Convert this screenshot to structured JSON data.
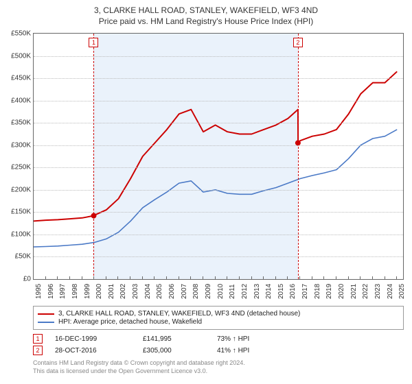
{
  "title": {
    "line1": "3, CLARKE HALL ROAD, STANLEY, WAKEFIELD, WF3 4ND",
    "line2": "Price paid vs. HM Land Registry's House Price Index (HPI)"
  },
  "chart": {
    "type": "line",
    "background_color": "#ffffff",
    "shade_color": "#eaf2fb",
    "grid_color": "#bbbbbb",
    "axis_color": "#666666",
    "label_fontsize": 10,
    "x": {
      "min": 1995,
      "max": 2025.5,
      "ticks": [
        1995,
        1996,
        1997,
        1998,
        1999,
        2000,
        2001,
        2002,
        2003,
        2004,
        2005,
        2006,
        2007,
        2008,
        2009,
        2010,
        2011,
        2012,
        2013,
        2014,
        2015,
        2016,
        2017,
        2018,
        2019,
        2020,
        2021,
        2022,
        2023,
        2024,
        2025
      ]
    },
    "y": {
      "min": 0,
      "max": 550000,
      "step": 50000,
      "prefix": "£",
      "suffix": "K",
      "ticks": [
        0,
        50000,
        100000,
        150000,
        200000,
        250000,
        300000,
        350000,
        400000,
        450000,
        500000,
        550000
      ]
    },
    "shade": {
      "from": 1999.96,
      "to": 2016.82
    },
    "series": [
      {
        "id": "property",
        "label": "3, CLARKE HALL ROAD, STANLEY, WAKEFIELD, WF3 4ND (detached house)",
        "color": "#cc0000",
        "width": 2,
        "points": [
          [
            1995,
            130000
          ],
          [
            1996,
            132000
          ],
          [
            1997,
            133000
          ],
          [
            1998,
            135000
          ],
          [
            1999,
            137000
          ],
          [
            1999.96,
            141995
          ],
          [
            2000,
            143000
          ],
          [
            2001,
            155000
          ],
          [
            2002,
            180000
          ],
          [
            2003,
            225000
          ],
          [
            2004,
            275000
          ],
          [
            2005,
            305000
          ],
          [
            2006,
            335000
          ],
          [
            2007,
            370000
          ],
          [
            2008,
            380000
          ],
          [
            2009,
            330000
          ],
          [
            2010,
            345000
          ],
          [
            2011,
            330000
          ],
          [
            2012,
            325000
          ],
          [
            2013,
            325000
          ],
          [
            2014,
            335000
          ],
          [
            2015,
            345000
          ],
          [
            2016,
            360000
          ],
          [
            2016.82,
            380000
          ],
          [
            2016.83,
            305000
          ],
          [
            2017,
            310000
          ],
          [
            2018,
            320000
          ],
          [
            2019,
            325000
          ],
          [
            2020,
            335000
          ],
          [
            2021,
            370000
          ],
          [
            2022,
            415000
          ],
          [
            2023,
            440000
          ],
          [
            2024,
            440000
          ],
          [
            2025,
            465000
          ]
        ]
      },
      {
        "id": "hpi",
        "label": "HPI: Average price, detached house, Wakefield",
        "color": "#4a79c6",
        "width": 1.6,
        "points": [
          [
            1995,
            72000
          ],
          [
            1996,
            73000
          ],
          [
            1997,
            74000
          ],
          [
            1998,
            76000
          ],
          [
            1999,
            78000
          ],
          [
            2000,
            82000
          ],
          [
            2001,
            90000
          ],
          [
            2002,
            105000
          ],
          [
            2003,
            130000
          ],
          [
            2004,
            160000
          ],
          [
            2005,
            178000
          ],
          [
            2006,
            195000
          ],
          [
            2007,
            215000
          ],
          [
            2008,
            220000
          ],
          [
            2009,
            195000
          ],
          [
            2010,
            200000
          ],
          [
            2011,
            192000
          ],
          [
            2012,
            190000
          ],
          [
            2013,
            190000
          ],
          [
            2014,
            198000
          ],
          [
            2015,
            205000
          ],
          [
            2016,
            215000
          ],
          [
            2017,
            225000
          ],
          [
            2018,
            232000
          ],
          [
            2019,
            238000
          ],
          [
            2020,
            245000
          ],
          [
            2021,
            270000
          ],
          [
            2022,
            300000
          ],
          [
            2023,
            315000
          ],
          [
            2024,
            320000
          ],
          [
            2025,
            335000
          ]
        ]
      }
    ],
    "markers": [
      {
        "n": 1,
        "x": 1999.96,
        "y": 141995,
        "color": "#cc0000"
      },
      {
        "n": 2,
        "x": 2016.82,
        "y": 305000,
        "color": "#cc0000"
      }
    ]
  },
  "legend": {
    "items": [
      {
        "color": "#cc0000",
        "label": "3, CLARKE HALL ROAD, STANLEY, WAKEFIELD, WF3 4ND (detached house)"
      },
      {
        "color": "#4a79c6",
        "label": "HPI: Average price, detached house, Wakefield"
      }
    ]
  },
  "sales": [
    {
      "n": 1,
      "color": "#cc0000",
      "date": "16-DEC-1999",
      "price": "£141,995",
      "pct": "73% ↑ HPI"
    },
    {
      "n": 2,
      "color": "#cc0000",
      "date": "28-OCT-2016",
      "price": "£305,000",
      "pct": "41% ↑ HPI"
    }
  ],
  "footer": {
    "line1": "Contains HM Land Registry data © Crown copyright and database right 2024.",
    "line2": "This data is licensed under the Open Government Licence v3.0."
  }
}
